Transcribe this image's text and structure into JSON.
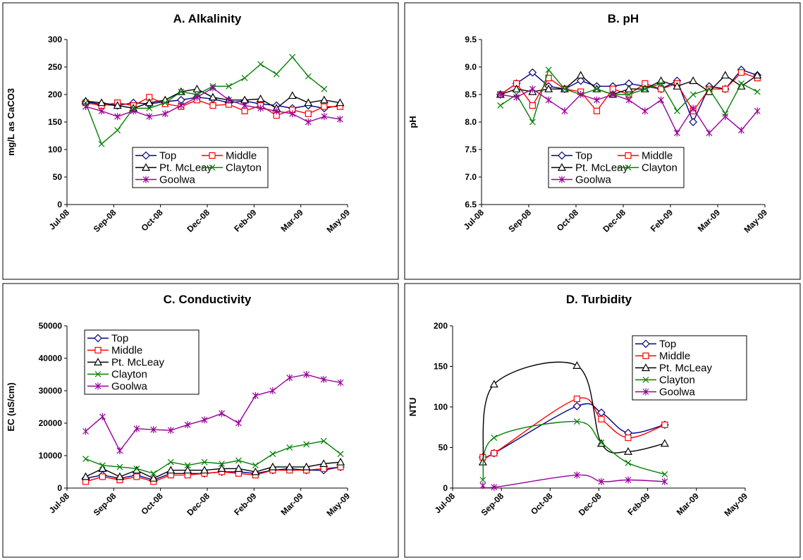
{
  "chart_data": [
    {
      "type": "line",
      "title": "A. Alkalinity",
      "y_label": "mg/L as CaCO3",
      "x": [
        0.4,
        0.74,
        1.08,
        1.42,
        1.76,
        2.1,
        2.44,
        2.78,
        3.12,
        3.46,
        3.8,
        4.14,
        4.48,
        4.82,
        5.16,
        5.5,
        5.84
      ],
      "xlim": [
        0,
        6
      ],
      "xticks": [
        {
          "value": 0,
          "label": "Jul-08"
        },
        {
          "value": 1,
          "label": "Sep-08"
        },
        {
          "value": 2,
          "label": "Oct-08"
        },
        {
          "value": 3,
          "label": "Dec-08"
        },
        {
          "value": 4,
          "label": "Feb-09"
        },
        {
          "value": 5,
          "label": "Mar-09"
        },
        {
          "value": 6,
          "label": "May-09"
        }
      ],
      "ylim": [
        0,
        300
      ],
      "yticks": [
        0,
        50,
        100,
        150,
        200,
        250,
        300
      ],
      "legend": {
        "position": "lower center",
        "columns": 2
      },
      "smooth": false,
      "series": [
        {
          "name": "Top",
          "color": "#000080",
          "marker": "diamond",
          "values": [
            187,
            182,
            180,
            185,
            183,
            187,
            190,
            195,
            192,
            185,
            188,
            183,
            180,
            175,
            180,
            175,
            180
          ]
        },
        {
          "name": "Middle",
          "color": "#ff0000",
          "marker": "square",
          "values": [
            185,
            180,
            185,
            180,
            195,
            183,
            178,
            190,
            180,
            182,
            170,
            180,
            162,
            172,
            165,
            178,
            178
          ]
        },
        {
          "name": "Pt. McLeay",
          "color": "#000000",
          "marker": "triangle",
          "values": [
            188,
            185,
            180,
            175,
            185,
            190,
            205,
            210,
            195,
            190,
            190,
            192,
            175,
            198,
            185,
            190,
            185
          ]
        },
        {
          "name": "Clayton",
          "color": "#008000",
          "marker": "x",
          "values": [
            185,
            110,
            135,
            175,
            175,
            185,
            205,
            200,
            215,
            215,
            230,
            255,
            237,
            268,
            233,
            210,
            null
          ]
        },
        {
          "name": "Goolwa",
          "color": "#990099",
          "marker": "star",
          "values": [
            178,
            170,
            160,
            170,
            160,
            165,
            180,
            195,
            212,
            190,
            180,
            175,
            170,
            165,
            150,
            160,
            155
          ]
        }
      ]
    },
    {
      "type": "line",
      "title": "B. pH",
      "y_label": "pH",
      "x": [
        0.4,
        0.74,
        1.08,
        1.42,
        1.76,
        2.1,
        2.44,
        2.78,
        3.12,
        3.46,
        3.8,
        4.14,
        4.48,
        4.82,
        5.16,
        5.5,
        5.84
      ],
      "xlim": [
        0,
        6
      ],
      "xticks": [
        {
          "value": 0,
          "label": "Jul-08"
        },
        {
          "value": 1,
          "label": "Sep-08"
        },
        {
          "value": 2,
          "label": "Oct-08"
        },
        {
          "value": 3,
          "label": "Dec-08"
        },
        {
          "value": 4,
          "label": "Feb-09"
        },
        {
          "value": 5,
          "label": "Mar-09"
        },
        {
          "value": 6,
          "label": "May-09"
        }
      ],
      "ylim": [
        6.5,
        9.5
      ],
      "yticks": [
        6.5,
        {
          "value": 7,
          "label": "7.0"
        },
        7.5,
        {
          "value": 8,
          "label": "8.0"
        },
        8.5,
        {
          "value": 9,
          "label": "9.0"
        },
        9.5
      ],
      "legend": {
        "position": "lower center",
        "columns": 2
      },
      "smooth": false,
      "series": [
        {
          "name": "Top",
          "color": "#000080",
          "marker": "diamond",
          "values": [
            8.5,
            8.7,
            8.9,
            8.65,
            8.6,
            8.75,
            8.65,
            8.65,
            8.7,
            8.65,
            8.6,
            8.75,
            8.0,
            8.65,
            8.6,
            8.95,
            8.85
          ]
        },
        {
          "name": "Middle",
          "color": "#ff0000",
          "marker": "square",
          "values": [
            8.5,
            8.7,
            8.3,
            8.8,
            8.6,
            8.55,
            8.2,
            8.6,
            8.5,
            8.7,
            8.6,
            8.7,
            8.2,
            8.6,
            8.6,
            8.9,
            8.8
          ]
        },
        {
          "name": "Pt. McLeay",
          "color": "#000000",
          "marker": "triangle",
          "values": [
            8.5,
            8.6,
            8.55,
            8.6,
            8.6,
            8.85,
            8.6,
            8.5,
            8.6,
            8.6,
            8.75,
            8.65,
            8.75,
            8.55,
            8.85,
            8.65,
            8.85
          ]
        },
        {
          "name": "Clayton",
          "color": "#008000",
          "marker": "x",
          "values": [
            8.3,
            8.5,
            8.0,
            8.95,
            8.6,
            8.5,
            8.6,
            8.5,
            8.5,
            8.6,
            8.7,
            8.2,
            8.5,
            8.6,
            8.15,
            8.7,
            8.55
          ]
        },
        {
          "name": "Goolwa",
          "color": "#990099",
          "marker": "star",
          "values": [
            8.5,
            8.45,
            8.6,
            8.4,
            8.2,
            8.5,
            8.4,
            8.5,
            8.4,
            8.2,
            8.4,
            7.8,
            8.25,
            7.8,
            8.1,
            7.85,
            8.2
          ]
        }
      ]
    },
    {
      "type": "line",
      "title": "C. Conductivity",
      "y_label": "EC (uS/cm)",
      "x": [
        0.4,
        0.76,
        1.13,
        1.49,
        1.85,
        2.22,
        2.58,
        2.94,
        3.31,
        3.67,
        4.03,
        4.4,
        4.76,
        5.12,
        5.49,
        5.85
      ],
      "xlim": [
        0,
        6
      ],
      "xticks": [
        {
          "value": 0,
          "label": "Jul-08"
        },
        {
          "value": 1,
          "label": "Sep-08"
        },
        {
          "value": 2,
          "label": "Oct-08"
        },
        {
          "value": 3,
          "label": "Dec-08"
        },
        {
          "value": 4,
          "label": "Feb-09"
        },
        {
          "value": 5,
          "label": "Mar-09"
        },
        {
          "value": 6,
          "label": "May-09"
        }
      ],
      "ylim": [
        0,
        50000
      ],
      "yticks": [
        0,
        10000,
        20000,
        30000,
        40000,
        50000
      ],
      "legend": {
        "position": "upper left",
        "columns": 1
      },
      "smooth": false,
      "series": [
        {
          "name": "Top",
          "color": "#000080",
          "marker": "diamond",
          "values": [
            3000,
            4000,
            3000,
            4000,
            2500,
            4500,
            4500,
            4500,
            5000,
            5000,
            4500,
            5500,
            6000,
            5500,
            5500,
            6500
          ]
        },
        {
          "name": "Middle",
          "color": "#ff0000",
          "marker": "square",
          "values": [
            2000,
            3500,
            2500,
            3500,
            2000,
            4000,
            4000,
            4500,
            5000,
            4500,
            4000,
            5500,
            5500,
            5500,
            6000,
            6500
          ]
        },
        {
          "name": "Pt. McLeay",
          "color": "#000000",
          "marker": "triangle",
          "values": [
            3500,
            6000,
            3500,
            5500,
            3000,
            5500,
            5500,
            5500,
            6000,
            6000,
            5000,
            6500,
            6500,
            6500,
            7500,
            8000
          ]
        },
        {
          "name": "Clayton",
          "color": "#008000",
          "marker": "x",
          "values": [
            9000,
            7000,
            6500,
            6000,
            4500,
            8000,
            7000,
            8000,
            7500,
            8500,
            7000,
            10500,
            12500,
            13500,
            14500,
            10500
          ]
        },
        {
          "name": "Goolwa",
          "color": "#990099",
          "marker": "star",
          "values": [
            17500,
            22000,
            11500,
            18300,
            18000,
            17800,
            19500,
            21000,
            23000,
            20000,
            28500,
            30000,
            34000,
            35000,
            33500,
            32500
          ]
        }
      ]
    },
    {
      "type": "line",
      "title": "D. Turbidity",
      "y_label": "NTU",
      "x": [
        0.62,
        0.85,
        2.55,
        3.05,
        3.6,
        4.35
      ],
      "xlim": [
        0,
        6
      ],
      "xticks": [
        {
          "value": 0,
          "label": "Jul-08"
        },
        {
          "value": 1,
          "label": "Sep-08"
        },
        {
          "value": 2,
          "label": "Oct-08"
        },
        {
          "value": 3,
          "label": "Dec-08"
        },
        {
          "value": 4,
          "label": "Feb-09"
        },
        {
          "value": 5,
          "label": "Mar-09"
        },
        {
          "value": 6,
          "label": "May-09"
        }
      ],
      "ylim": [
        0,
        200
      ],
      "yticks": [
        0,
        50,
        100,
        150,
        200
      ],
      "legend": {
        "position": "upper right",
        "columns": 1
      },
      "smooth": true,
      "series": [
        {
          "name": "Top",
          "color": "#000080",
          "marker": "diamond",
          "values": [
            38,
            43,
            101,
            93,
            68,
            78
          ]
        },
        {
          "name": "Middle",
          "color": "#ff0000",
          "marker": "square",
          "values": [
            38,
            43,
            110,
            85,
            62,
            78
          ]
        },
        {
          "name": "Pt. McLeay",
          "color": "#000000",
          "marker": "triangle",
          "values": [
            32,
            128,
            151,
            55,
            45,
            55
          ]
        },
        {
          "name": "Clayton",
          "color": "#008000",
          "marker": "x",
          "values": [
            10,
            62,
            82,
            56,
            31,
            17
          ]
        },
        {
          "name": "Goolwa",
          "color": "#990099",
          "marker": "star",
          "values": [
            3,
            1,
            16,
            8,
            10,
            8
          ]
        }
      ]
    }
  ]
}
